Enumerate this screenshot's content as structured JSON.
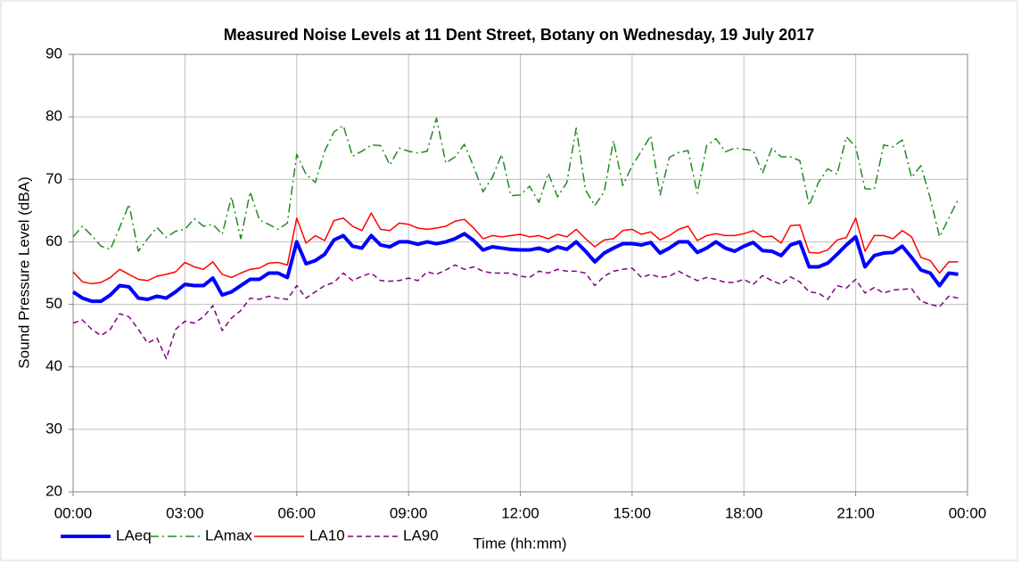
{
  "chart_data": {
    "type": "line",
    "title": "Measured Noise Levels at 11 Dent Street, Botany on Wednesday, 19 July 2017",
    "x_label": "Time (hh:mm)",
    "y_label": "Sound Pressure Level (dBA)",
    "xlim": [
      0,
      24
    ],
    "xticks": [
      {
        "value": 0,
        "label": "00:00"
      },
      {
        "value": 3,
        "label": "03:00"
      },
      {
        "value": 6,
        "label": "06:00"
      },
      {
        "value": 9,
        "label": "09:00"
      },
      {
        "value": 12,
        "label": "12:00"
      },
      {
        "value": 15,
        "label": "15:00"
      },
      {
        "value": 18,
        "label": "18:00"
      },
      {
        "value": 21,
        "label": "21:00"
      },
      {
        "value": 24,
        "label": "00:00"
      }
    ],
    "ylim": [
      20,
      90
    ],
    "yticks": [
      20,
      30,
      40,
      50,
      60,
      70,
      80,
      90
    ],
    "grid": true,
    "legend": "bottom-left",
    "x": [
      0,
      0.25,
      0.5,
      0.75,
      1,
      1.25,
      1.5,
      1.75,
      2,
      2.25,
      2.5,
      2.75,
      3,
      3.25,
      3.5,
      3.75,
      4,
      4.25,
      4.5,
      4.75,
      5,
      5.25,
      5.5,
      5.75,
      6,
      6.25,
      6.5,
      6.75,
      7,
      7.25,
      7.5,
      7.75,
      8,
      8.25,
      8.5,
      8.75,
      9,
      9.25,
      9.5,
      9.75,
      10,
      10.25,
      10.5,
      10.75,
      11,
      11.25,
      11.5,
      11.75,
      12,
      12.25,
      12.5,
      12.75,
      13,
      13.25,
      13.5,
      13.75,
      14,
      14.25,
      14.5,
      14.75,
      15,
      15.25,
      15.5,
      15.75,
      16,
      16.25,
      16.5,
      16.75,
      17,
      17.25,
      17.5,
      17.75,
      18,
      18.25,
      18.5,
      18.75,
      19,
      19.25,
      19.5,
      19.75,
      20,
      20.25,
      20.5,
      20.75,
      21,
      21.25,
      21.5,
      21.75,
      22,
      22.25,
      22.5,
      22.75,
      23,
      23.25,
      23.5,
      23.75
    ],
    "series": [
      {
        "name": "LAeq",
        "color": "#0000ff",
        "style": "solid",
        "width": 4,
        "values": [
          52,
          51,
          50.5,
          50.5,
          51.5,
          53,
          52.8,
          51,
          50.8,
          51.3,
          51,
          52,
          53.2,
          53,
          53,
          54.2,
          51.5,
          52,
          53,
          54,
          54,
          55,
          55,
          54.3,
          60,
          56.5,
          57,
          58,
          60.3,
          61,
          59.3,
          59,
          61,
          59.5,
          59.2,
          60,
          60,
          59.6,
          60,
          59.7,
          60,
          60.5,
          61.3,
          60.2,
          58.7,
          59.2,
          59,
          58.8,
          58.7,
          58.7,
          59,
          58.5,
          59.2,
          58.8,
          60,
          58.5,
          56.8,
          58.2,
          59,
          59.7,
          59.7,
          59.5,
          59.9,
          58.2,
          59,
          60,
          60,
          58.3,
          59,
          60,
          59,
          58.5,
          59.3,
          59.9,
          58.6,
          58.5,
          57.8,
          59.5,
          60,
          56,
          56,
          56.6,
          58,
          59.5,
          60.8,
          56,
          57.8,
          58.2,
          58.3,
          59.3,
          57.5,
          55.5,
          55,
          53,
          55,
          54.8
        ]
      },
      {
        "name": "LAmax",
        "color": "#228b22",
        "style": "dashdot",
        "width": 1.5,
        "values": [
          60.8,
          62.5,
          61,
          59.3,
          58.8,
          62.3,
          66,
          58.5,
          60.5,
          62.3,
          60.7,
          61.7,
          62,
          63.7,
          62.5,
          62.8,
          61.2,
          67.2,
          60.5,
          68,
          63.5,
          62.8,
          62,
          63,
          74,
          70.8,
          69.5,
          74.5,
          77.6,
          78.6,
          73.7,
          74.5,
          75.5,
          75.4,
          72.3,
          75,
          74.5,
          74.2,
          74.5,
          79.8,
          72.6,
          73.6,
          75.6,
          72,
          68,
          70.3,
          74,
          67.4,
          67.5,
          68.9,
          66.3,
          71,
          67.2,
          69.5,
          78.2,
          68.3,
          65.8,
          68,
          76.2,
          69,
          72.2,
          74.5,
          77,
          67.5,
          73.5,
          74.3,
          74.6,
          67.8,
          75.4,
          76.5,
          74.4,
          75,
          74.8,
          74.6,
          71,
          75,
          73.6,
          73.6,
          73,
          65.8,
          69.5,
          71.7,
          70.8,
          76.8,
          75.2,
          68.5,
          68.4,
          75.5,
          75.2,
          76.3,
          70.3,
          72.2,
          67,
          60.8,
          63.8,
          66.8
        ]
      },
      {
        "name": "LA10",
        "color": "#ff0000",
        "style": "solid",
        "width": 1.5,
        "values": [
          55.2,
          53.6,
          53.3,
          53.5,
          54.3,
          55.6,
          54.8,
          54,
          53.8,
          54.5,
          54.8,
          55.2,
          56.7,
          56,
          55.6,
          56.8,
          54.8,
          54.3,
          55,
          55.6,
          55.8,
          56.6,
          56.7,
          56.3,
          63.8,
          59.8,
          61,
          60.2,
          63.4,
          63.8,
          62.5,
          61.8,
          64.6,
          62,
          61.8,
          63,
          62.8,
          62.2,
          62,
          62.2,
          62.5,
          63.3,
          63.6,
          62.2,
          60.5,
          61,
          60.8,
          61,
          61.2,
          60.8,
          61,
          60.5,
          61.2,
          60.8,
          62,
          60.5,
          59.2,
          60.3,
          60.5,
          61.8,
          62,
          61.2,
          61.6,
          60.3,
          61,
          62,
          62.5,
          60.2,
          61,
          61.3,
          61,
          61,
          61.3,
          61.8,
          60.8,
          60.9,
          59.8,
          62.6,
          62.7,
          58.3,
          58.2,
          58.7,
          60.3,
          60.7,
          63.8,
          58.5,
          61,
          61,
          60.5,
          61.8,
          60.8,
          57.5,
          57,
          55,
          56.8,
          56.8
        ]
      },
      {
        "name": "LA90",
        "color": "#800080",
        "style": "dashed",
        "width": 1.5,
        "values": [
          47,
          47.5,
          46,
          45,
          46,
          48.5,
          48,
          46,
          43.8,
          44.6,
          41.3,
          46,
          47.3,
          47,
          48,
          49.8,
          45.8,
          47.8,
          49,
          51,
          50.8,
          51.3,
          51,
          50.8,
          53,
          51,
          52,
          53,
          53.5,
          55,
          53.8,
          54.5,
          55,
          53.8,
          53.7,
          53.8,
          54.2,
          53.8,
          55.2,
          54.8,
          55.5,
          56.3,
          55.6,
          56,
          55.3,
          55,
          55,
          55,
          54.5,
          54.3,
          55.3,
          55,
          55.6,
          55.3,
          55.3,
          55,
          53,
          54.5,
          55.3,
          55.6,
          55.8,
          54.3,
          54.8,
          54.3,
          54.5,
          55.3,
          54.5,
          53.8,
          54.3,
          54,
          53.5,
          53.5,
          54,
          53.2,
          54.6,
          53.8,
          53.2,
          54.4,
          53.6,
          52,
          51.8,
          50.8,
          53,
          52.6,
          54,
          51.8,
          52.7,
          51.8,
          52.3,
          52.4,
          52.5,
          50.5,
          50,
          49.6,
          51.3,
          51
        ]
      }
    ]
  }
}
